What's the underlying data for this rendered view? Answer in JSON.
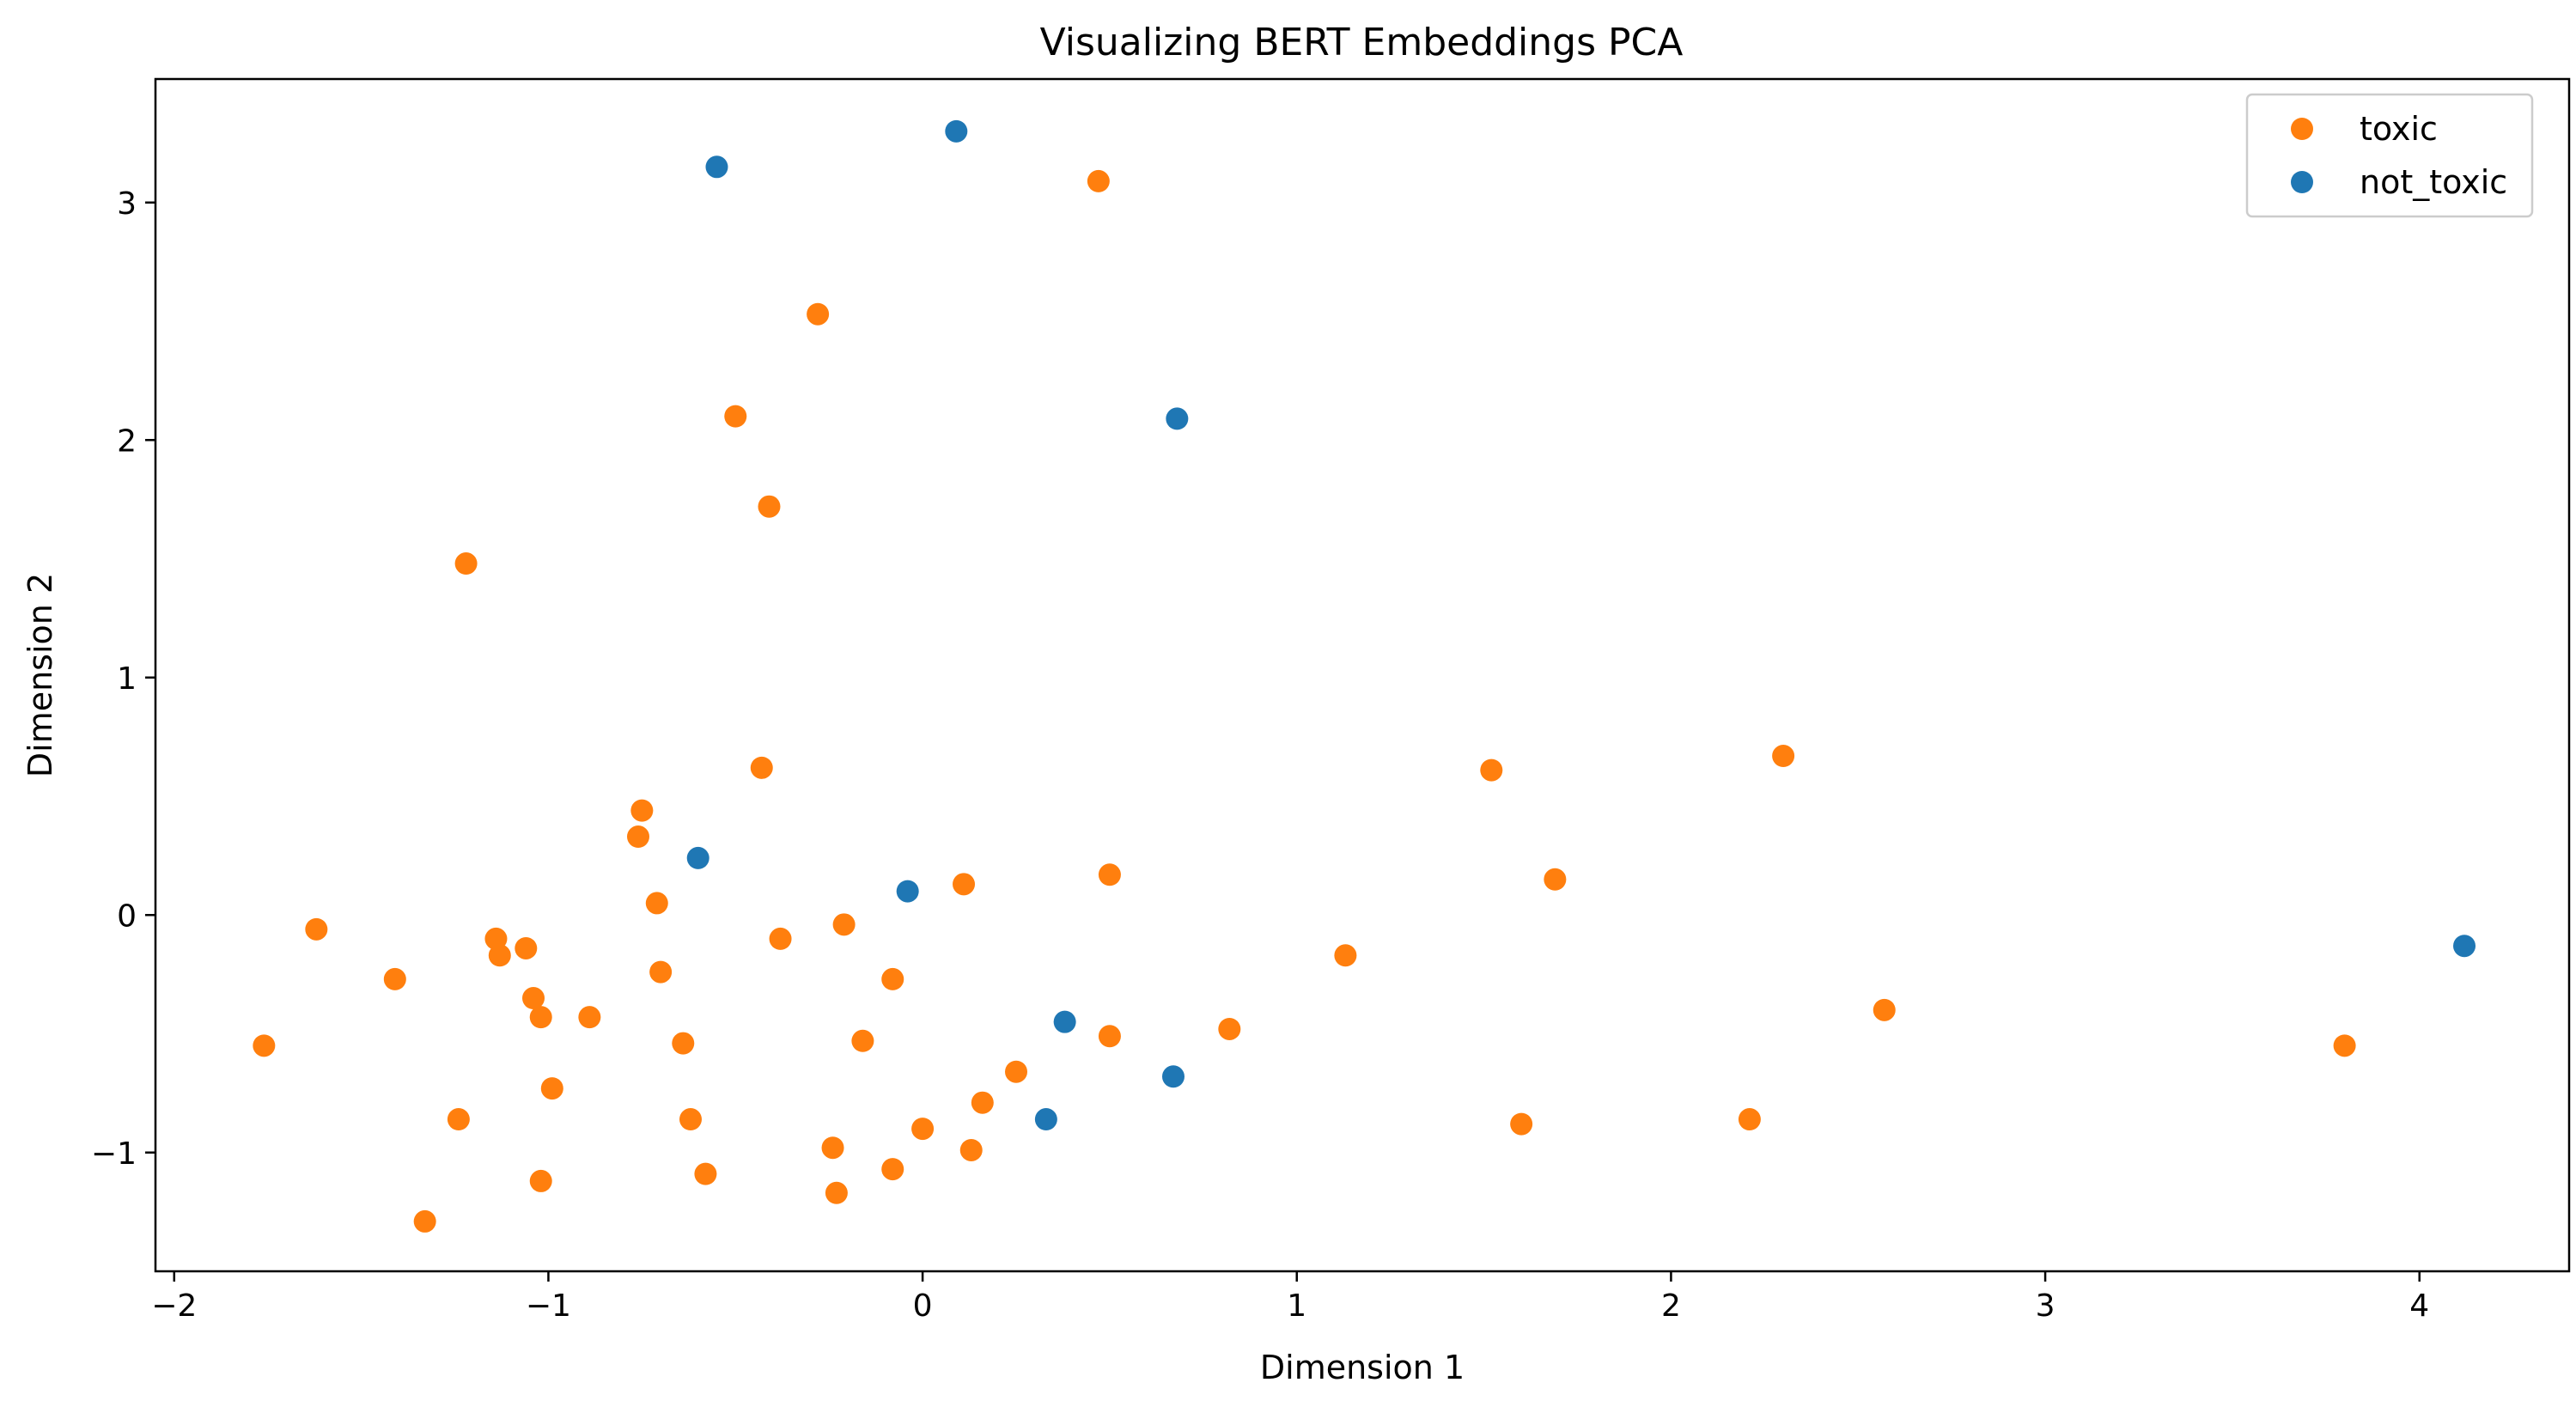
{
  "chart_data": {
    "type": "scatter",
    "title": "Visualizing BERT Embeddings PCA",
    "xlabel": "Dimension 1",
    "ylabel": "Dimension 2",
    "xlim": [
      -2.05,
      4.4
    ],
    "ylim": [
      -1.5,
      3.52
    ],
    "xticks": [
      -2,
      -1,
      0,
      1,
      2,
      3,
      4
    ],
    "yticks": [
      -1,
      0,
      1,
      2,
      3
    ],
    "tick_labels_x": [
      "−2",
      "−1",
      "0",
      "1",
      "2",
      "3",
      "4"
    ],
    "tick_labels_y": [
      "−1",
      "0",
      "1",
      "2",
      "3"
    ],
    "grid": false,
    "legend_position": "top-right",
    "series": [
      {
        "name": "toxic",
        "color": "#ff7f0e",
        "points": [
          [
            0.47,
            3.09
          ],
          [
            -0.28,
            2.53
          ],
          [
            -0.5,
            2.1
          ],
          [
            -0.41,
            1.72
          ],
          [
            -1.22,
            1.48
          ],
          [
            -0.43,
            0.62
          ],
          [
            1.52,
            0.61
          ],
          [
            2.3,
            0.67
          ],
          [
            -0.75,
            0.44
          ],
          [
            -0.76,
            0.33
          ],
          [
            -0.71,
            0.05
          ],
          [
            0.11,
            0.13
          ],
          [
            0.5,
            0.17
          ],
          [
            1.69,
            0.15
          ],
          [
            -1.62,
            -0.06
          ],
          [
            -1.14,
            -0.1
          ],
          [
            -1.13,
            -0.17
          ],
          [
            -1.06,
            -0.14
          ],
          [
            -0.38,
            -0.1
          ],
          [
            -0.21,
            -0.04
          ],
          [
            1.13,
            -0.17
          ],
          [
            -1.41,
            -0.27
          ],
          [
            -0.7,
            -0.24
          ],
          [
            -0.08,
            -0.27
          ],
          [
            -1.04,
            -0.35
          ],
          [
            -1.02,
            -0.43
          ],
          [
            -0.89,
            -0.43
          ],
          [
            2.57,
            -0.4
          ],
          [
            0.5,
            -0.51
          ],
          [
            0.82,
            -0.48
          ],
          [
            -1.76,
            -0.55
          ],
          [
            -0.64,
            -0.54
          ],
          [
            -0.16,
            -0.53
          ],
          [
            3.8,
            -0.55
          ],
          [
            0.25,
            -0.66
          ],
          [
            -0.99,
            -0.73
          ],
          [
            0.16,
            -0.79
          ],
          [
            -1.24,
            -0.86
          ],
          [
            -0.62,
            -0.86
          ],
          [
            1.6,
            -0.88
          ],
          [
            2.21,
            -0.86
          ],
          [
            0.0,
            -0.9
          ],
          [
            -0.24,
            -0.98
          ],
          [
            0.13,
            -0.99
          ],
          [
            -0.58,
            -1.09
          ],
          [
            -1.02,
            -1.12
          ],
          [
            -0.08,
            -1.07
          ],
          [
            -0.23,
            -1.17
          ],
          [
            -1.33,
            -1.29
          ]
        ]
      },
      {
        "name": "not_toxic",
        "color": "#1f77b4",
        "points": [
          [
            0.09,
            3.3
          ],
          [
            -0.55,
            3.15
          ],
          [
            0.68,
            2.09
          ],
          [
            -0.6,
            0.24
          ],
          [
            -0.04,
            0.1
          ],
          [
            4.12,
            -0.13
          ],
          [
            0.38,
            -0.45
          ],
          [
            0.67,
            -0.68
          ],
          [
            0.33,
            -0.86
          ]
        ]
      }
    ]
  }
}
